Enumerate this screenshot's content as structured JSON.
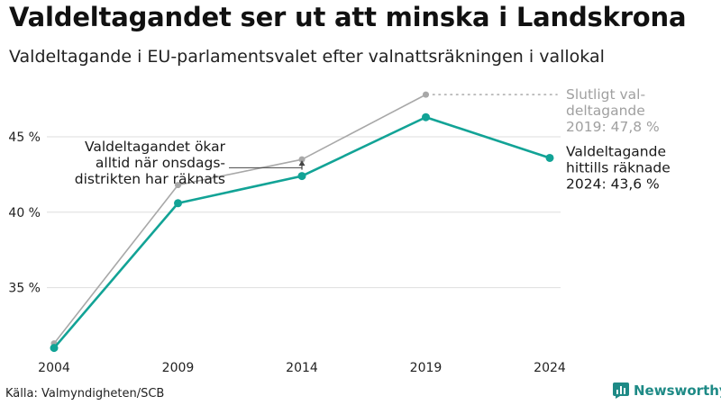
{
  "title": "Valdeltagandet ser ut att minska i Landskrona",
  "subtitle": "Valdeltagande i EU-parlamentsvalet efter valnattsräkningen i vallokal",
  "source": "Källa: Valmyndigheten/SCB",
  "brand": "Newsworthy",
  "colors": {
    "preliminary": "#12a396",
    "final": "#a8a8a8",
    "grid": "#dedede",
    "brand": "#1e8a86"
  },
  "chart_data": {
    "type": "line",
    "categories": [
      "2004",
      "2009",
      "2014",
      "2019",
      "2024"
    ],
    "ylim": [
      30.5,
      49
    ],
    "yticks": [
      35,
      40,
      45
    ],
    "ytick_labels": [
      "35 %",
      "40 %",
      "45 %"
    ],
    "series": [
      {
        "name": "Slutligt valdeltagande",
        "values": [
          31.3,
          41.8,
          43.5,
          47.8,
          null
        ]
      },
      {
        "name": "Valdeltagande hittills räknade",
        "values": [
          31.0,
          40.6,
          42.4,
          46.3,
          43.6
        ]
      }
    ],
    "annotations": {
      "final_label": [
        "Slutligt val-",
        "deltagande",
        "2019: 47,8 %"
      ],
      "current_label": [
        "Valdeltagande",
        "hittills räknade",
        "2024: 43,6 %"
      ],
      "note": [
        "Valdeltagandet ökar",
        "alltid när onsdags-",
        "distrikten har räknats"
      ]
    }
  }
}
